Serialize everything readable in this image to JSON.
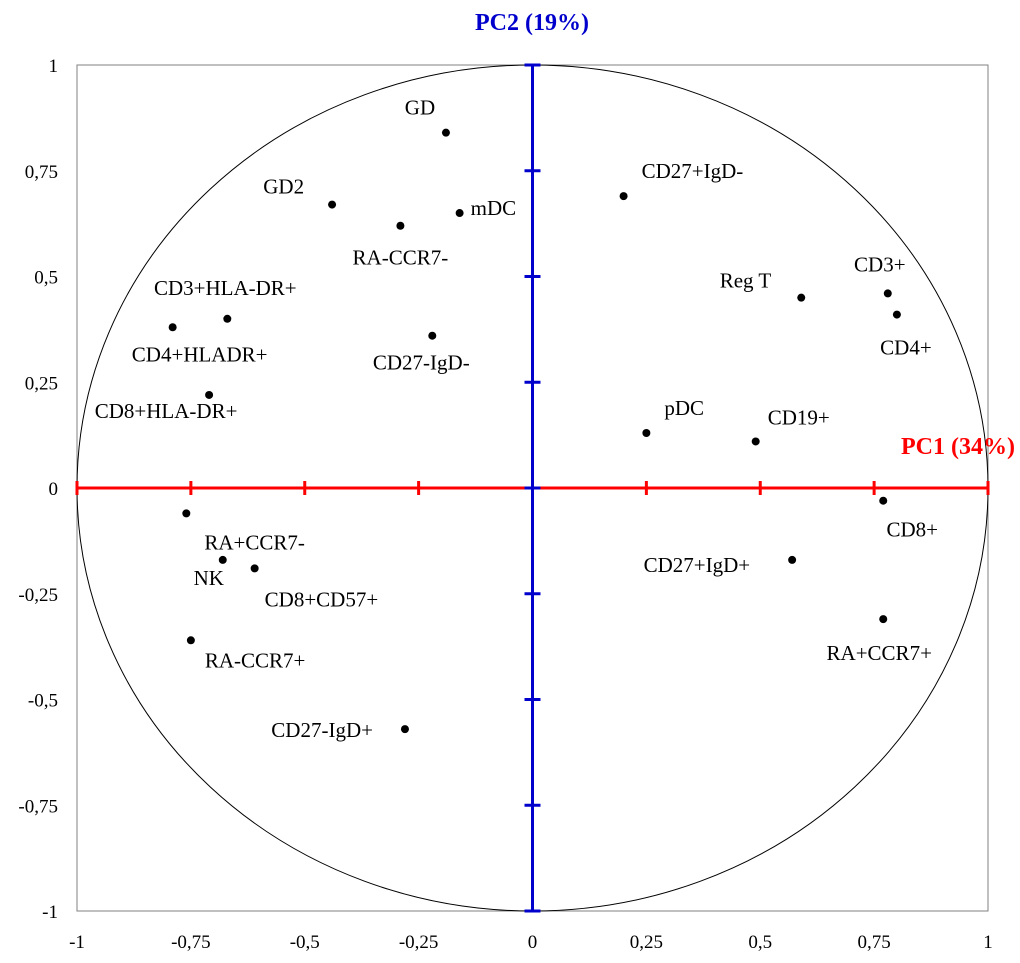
{
  "chart_data": {
    "type": "scatter",
    "title": "",
    "xlabel": "PC1 (34%)",
    "ylabel": "PC2 (19%)",
    "xlim": [
      -1,
      1
    ],
    "ylim": [
      -1,
      1
    ],
    "x_ticks": [
      "-1",
      "-0,75",
      "-0,5",
      "-0,25",
      "0",
      "0,25",
      "0,5",
      "0,75",
      "1"
    ],
    "y_ticks": [
      "1",
      "0,75",
      "0,5",
      "0,25",
      "0",
      "-0,25",
      "-0,5",
      "-0,75",
      "-1"
    ],
    "correlation_circle": true,
    "colors": {
      "pc1_axis": "#ff0000",
      "pc2_axis": "#0000cc",
      "points": "#000000"
    },
    "points": [
      {
        "label": "GD",
        "x": -0.19,
        "y": 0.84
      },
      {
        "label": "GD2",
        "x": -0.44,
        "y": 0.67
      },
      {
        "label": "RA-CCR7-",
        "x": -0.29,
        "y": 0.62
      },
      {
        "label": "mDC",
        "x": -0.16,
        "y": 0.65
      },
      {
        "label": "CD27+IgD-",
        "x": 0.2,
        "y": 0.69
      },
      {
        "label": "CD3+HLA-DR+",
        "x": -0.67,
        "y": 0.4
      },
      {
        "label": "CD4+HLADR+",
        "x": -0.79,
        "y": 0.38
      },
      {
        "label": "CD27-IgD-",
        "x": -0.22,
        "y": 0.36
      },
      {
        "label": "CD8+HLA-DR+",
        "x": -0.71,
        "y": 0.22
      },
      {
        "label": "Reg T",
        "x": 0.59,
        "y": 0.45
      },
      {
        "label": "CD3+",
        "x": 0.78,
        "y": 0.46
      },
      {
        "label": "CD4+",
        "x": 0.8,
        "y": 0.41
      },
      {
        "label": "pDC",
        "x": 0.25,
        "y": 0.13
      },
      {
        "label": "CD19+",
        "x": 0.49,
        "y": 0.11
      },
      {
        "label": "CD8+",
        "x": 0.77,
        "y": -0.03
      },
      {
        "label": "RA+CCR7-",
        "x": -0.76,
        "y": -0.06
      },
      {
        "label": "NK",
        "x": -0.68,
        "y": -0.17
      },
      {
        "label": "CD8+CD57+",
        "x": -0.61,
        "y": -0.19
      },
      {
        "label": "RA-CCR7+",
        "x": -0.75,
        "y": -0.36
      },
      {
        "label": "CD27+IgD+",
        "x": 0.57,
        "y": -0.17
      },
      {
        "label": "RA+CCR7+",
        "x": 0.77,
        "y": -0.31
      },
      {
        "label": "CD27-IgD+",
        "x": -0.28,
        "y": -0.57
      }
    ]
  }
}
